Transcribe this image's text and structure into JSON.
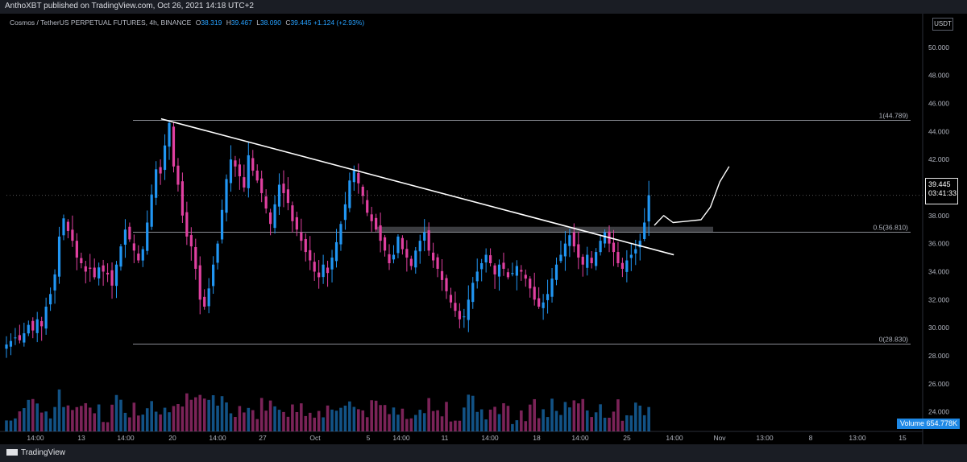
{
  "header": {
    "publisher_text": "AnthoXBT published on TradingView.com, Oct 26, 2021 14:18 UTC+2"
  },
  "legend": {
    "symbol": "Cosmos / TetherUS PERPETUAL FUTURES, 4h, BINANCE",
    "open_label": "O",
    "open": "38.319",
    "high_label": "H",
    "high": "39.467",
    "low_label": "L",
    "low": "38.090",
    "close_label": "C",
    "close": "39.445",
    "change": "+1.124 (+2.93%)"
  },
  "price_axis": {
    "currency": "USDT",
    "current_price": "39.445",
    "countdown": "03:41:33"
  },
  "volume": {
    "label": "Volume",
    "value": "654.778K"
  },
  "footer": {
    "brand": "TradingView"
  },
  "colors": {
    "up": "#2196f3",
    "down": "#e040a0",
    "trendline": "#ffffff",
    "fib_line": "#8a8d94",
    "zone": "#6b6e75"
  },
  "chart_data": {
    "type": "candlestick",
    "interval": "4h",
    "y_ticks": [
      24,
      26,
      28,
      30,
      32,
      34,
      36,
      38,
      40,
      42,
      44,
      46,
      48,
      50
    ],
    "y_tick_labels": [
      "24.000",
      "26.000",
      "28.000",
      "30.000",
      "32.000",
      "34.000",
      "36.000",
      "38.000",
      "40.000",
      "42.000",
      "44.000",
      "46.000",
      "48.000",
      "50.000"
    ],
    "ylim": [
      22.6,
      52.4
    ],
    "x_tick_labels": [
      "14:00",
      "13",
      "14:00",
      "20",
      "14:00",
      "27",
      "Oct",
      "5",
      "14:00",
      "11",
      "14:00",
      "18",
      "14:00",
      "25",
      "14:00",
      "Nov",
      "13:00",
      "8",
      "13:00",
      "15"
    ],
    "fib_levels": [
      {
        "label": "1(44.789)",
        "value": 44.789
      },
      {
        "label": "0.5(36.810)",
        "value": 36.81
      },
      {
        "label": "0(28.830)",
        "value": 28.83
      }
    ],
    "resistance_zone": [
      36.8,
      37.2
    ],
    "current_price": 39.445,
    "close_path": [
      [
        0,
        28.8
      ],
      [
        2,
        29.3
      ],
      [
        3,
        29.1
      ],
      [
        4,
        29.6
      ],
      [
        5,
        30.2
      ],
      [
        6,
        29.8
      ],
      [
        7,
        30.6
      ],
      [
        8,
        30.1
      ],
      [
        9,
        31.5
      ],
      [
        10,
        32.4
      ],
      [
        11,
        33.8
      ],
      [
        12,
        36.5
      ],
      [
        13,
        37.8
      ],
      [
        14,
        36.9
      ],
      [
        15,
        36.2
      ],
      [
        16,
        35.0
      ],
      [
        17,
        34.6
      ],
      [
        18,
        34.0
      ],
      [
        19,
        34.2
      ],
      [
        20,
        33.6
      ],
      [
        21,
        34.3
      ],
      [
        22,
        34.0
      ],
      [
        23,
        33.8
      ],
      [
        24,
        33.0
      ],
      [
        25,
        34.5
      ],
      [
        26,
        35.8
      ],
      [
        27,
        37.0
      ],
      [
        28,
        36.3
      ],
      [
        29,
        35.5
      ],
      [
        30,
        34.8
      ],
      [
        31,
        35.6
      ],
      [
        32,
        37.5
      ],
      [
        33,
        39.5
      ],
      [
        34,
        41.3
      ],
      [
        35,
        41.0
      ],
      [
        36,
        43.0
      ],
      [
        37,
        44.6
      ],
      [
        38,
        41.5
      ],
      [
        39,
        40.2
      ],
      [
        40,
        38.0
      ],
      [
        41,
        36.5
      ],
      [
        42,
        35.8
      ],
      [
        43,
        34.2
      ],
      [
        44,
        32.0
      ],
      [
        45,
        31.5
      ],
      [
        46,
        32.8
      ],
      [
        47,
        34.5
      ],
      [
        48,
        36.0
      ],
      [
        49,
        38.4
      ],
      [
        50,
        40.6
      ],
      [
        51,
        42.0
      ],
      [
        52,
        41.5
      ],
      [
        53,
        40.8
      ],
      [
        54,
        40.0
      ],
      [
        55,
        42.3
      ],
      [
        56,
        41.2
      ],
      [
        57,
        40.5
      ],
      [
        58,
        39.6
      ],
      [
        59,
        38.5
      ],
      [
        60,
        37.4
      ],
      [
        61,
        38.8
      ],
      [
        62,
        40.2
      ],
      [
        63,
        39.6
      ],
      [
        64,
        38.9
      ],
      [
        65,
        37.6
      ],
      [
        66,
        37.0
      ],
      [
        67,
        36.2
      ],
      [
        68,
        35.4
      ],
      [
        69,
        34.8
      ],
      [
        70,
        34.0
      ],
      [
        71,
        33.6
      ],
      [
        72,
        34.5
      ],
      [
        73,
        33.9
      ],
      [
        74,
        35.0
      ],
      [
        75,
        36.1
      ],
      [
        76,
        37.4
      ],
      [
        77,
        38.8
      ],
      [
        78,
        40.5
      ],
      [
        79,
        41.2
      ],
      [
        80,
        40.3
      ],
      [
        81,
        39.4
      ],
      [
        82,
        38.2
      ],
      [
        83,
        37.6
      ],
      [
        84,
        37.0
      ],
      [
        85,
        36.2
      ],
      [
        86,
        35.5
      ],
      [
        87,
        34.6
      ],
      [
        88,
        35.2
      ],
      [
        89,
        36.5
      ],
      [
        90,
        35.6
      ],
      [
        91,
        35.0
      ],
      [
        92,
        34.4
      ],
      [
        93,
        35.5
      ],
      [
        94,
        36.2
      ],
      [
        95,
        36.8
      ],
      [
        96,
        35.5
      ],
      [
        97,
        34.8
      ],
      [
        98,
        34.2
      ],
      [
        99,
        33.4
      ],
      [
        100,
        32.6
      ],
      [
        101,
        31.8
      ],
      [
        102,
        31.2
      ],
      [
        103,
        30.6
      ],
      [
        104,
        30.8
      ],
      [
        105,
        32.0
      ],
      [
        106,
        33.2
      ],
      [
        107,
        34.0
      ],
      [
        108,
        34.6
      ],
      [
        109,
        35.2
      ],
      [
        110,
        34.6
      ],
      [
        111,
        33.8
      ],
      [
        112,
        34.5
      ],
      [
        113,
        34.2
      ],
      [
        114,
        33.6
      ],
      [
        115,
        33.9
      ],
      [
        116,
        34.4
      ],
      [
        117,
        34.0
      ],
      [
        118,
        33.5
      ],
      [
        119,
        32.8
      ],
      [
        120,
        32.0
      ],
      [
        121,
        31.5
      ],
      [
        122,
        31.8
      ],
      [
        123,
        32.4
      ],
      [
        124,
        33.5
      ],
      [
        125,
        34.5
      ],
      [
        126,
        35.2
      ],
      [
        127,
        36.0
      ],
      [
        128,
        36.6
      ],
      [
        129,
        35.8
      ],
      [
        130,
        35.0
      ],
      [
        131,
        34.5
      ],
      [
        132,
        35.2
      ],
      [
        133,
        34.6
      ],
      [
        134,
        35.4
      ],
      [
        135,
        36.2
      ],
      [
        136,
        36.8
      ],
      [
        137,
        36.0
      ],
      [
        138,
        35.4
      ],
      [
        139,
        34.6
      ],
      [
        140,
        34.2
      ],
      [
        141,
        34.8
      ],
      [
        142,
        35.2
      ],
      [
        143,
        35.6
      ],
      [
        144,
        36.2
      ],
      [
        145,
        37.5
      ],
      [
        146,
        39.445
      ]
    ],
    "projection_path": [
      [
        146,
        37.3
      ],
      [
        148,
        38.0
      ],
      [
        150,
        37.5
      ],
      [
        153,
        37.6
      ],
      [
        156,
        37.7
      ],
      [
        158,
        38.6
      ],
      [
        160,
        40.4
      ],
      [
        162,
        41.5
      ]
    ],
    "trendline": {
      "from": [
        15,
        44.9
      ],
      "to": [
        170,
        35.2
      ]
    }
  }
}
